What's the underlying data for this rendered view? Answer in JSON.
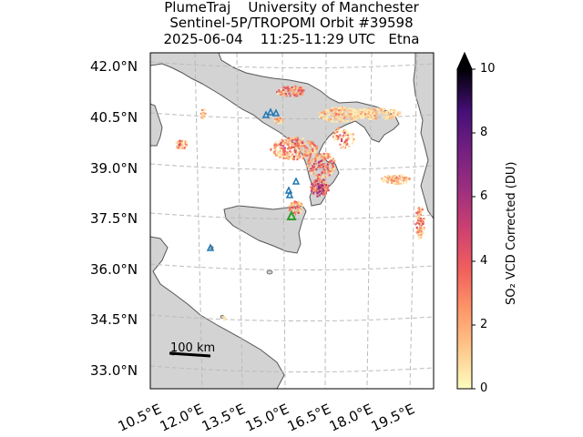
{
  "title": {
    "line1": "PlumeTraj    University of Manchester",
    "line2": "Sentinel-5P/TROPOMI Orbit #39598",
    "line3": "2025-06-04    11:25-11:29 UTC   Etna"
  },
  "axes": {
    "lat_ticks": [
      "42.0°N",
      "40.5°N",
      "39.0°N",
      "37.5°N",
      "36.0°N",
      "34.5°N",
      "33.0°N"
    ],
    "lon_ticks": [
      "10.5°E",
      "12.0°E",
      "13.5°E",
      "15.0°E",
      "16.5°E",
      "18.0°E",
      "19.5°E"
    ],
    "grid": true
  },
  "colorbar": {
    "label": "SO₂ VCD Corrected (DU)",
    "ticks": [
      "0",
      "2",
      "4",
      "6",
      "8",
      "10"
    ],
    "range": [
      0,
      10
    ],
    "extend": "max",
    "colormap": "magma_r"
  },
  "scale_bar": {
    "label": "100 km"
  },
  "markers": {
    "volcano_color": "#2ca02c",
    "other_volcano_color": "#1f77b4"
  },
  "colors": {
    "land": "#d3d3d3",
    "sea": "#ffffff",
    "coast": "#555555",
    "grid": "#bbbbbb"
  }
}
